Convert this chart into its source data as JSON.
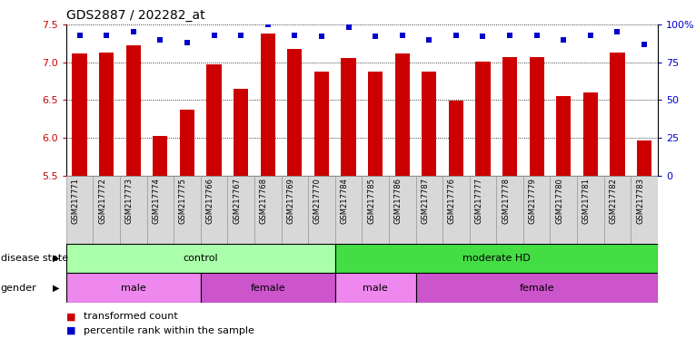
{
  "title": "GDS2887 / 202282_at",
  "samples": [
    "GSM217771",
    "GSM217772",
    "GSM217773",
    "GSM217774",
    "GSM217775",
    "GSM217766",
    "GSM217767",
    "GSM217768",
    "GSM217769",
    "GSM217770",
    "GSM217784",
    "GSM217785",
    "GSM217786",
    "GSM217787",
    "GSM217776",
    "GSM217777",
    "GSM217778",
    "GSM217779",
    "GSM217780",
    "GSM217781",
    "GSM217782",
    "GSM217783"
  ],
  "bar_values": [
    7.12,
    7.13,
    7.22,
    6.02,
    6.37,
    6.97,
    6.65,
    7.38,
    7.17,
    6.88,
    7.05,
    6.88,
    7.12,
    6.88,
    6.49,
    7.01,
    7.07,
    7.07,
    6.55,
    6.6,
    7.13,
    5.97
  ],
  "percentile_values": [
    93,
    93,
    95,
    90,
    88,
    93,
    93,
    100,
    93,
    92,
    98,
    92,
    93,
    90,
    93,
    92,
    93,
    93,
    90,
    93,
    95,
    87
  ],
  "bar_color": "#cc0000",
  "percentile_color": "#0000cc",
  "ylim_left": [
    5.5,
    7.5
  ],
  "ylim_right": [
    0,
    100
  ],
  "yticks_left": [
    5.5,
    6.0,
    6.5,
    7.0,
    7.5
  ],
  "yticks_right": [
    0,
    25,
    50,
    75,
    100
  ],
  "ytick_labels_right": [
    "0",
    "25",
    "50",
    "75",
    "100%"
  ],
  "disease_state_groups": [
    {
      "label": "control",
      "start": 0,
      "end": 10,
      "color": "#aaffaa"
    },
    {
      "label": "moderate HD",
      "start": 10,
      "end": 22,
      "color": "#44dd44"
    }
  ],
  "gender_groups": [
    {
      "label": "male",
      "start": 0,
      "end": 5,
      "color": "#ee88ee"
    },
    {
      "label": "female",
      "start": 5,
      "end": 10,
      "color": "#cc55cc"
    },
    {
      "label": "male",
      "start": 10,
      "end": 13,
      "color": "#ee88ee"
    },
    {
      "label": "female",
      "start": 13,
      "end": 22,
      "color": "#cc55cc"
    }
  ],
  "disease_state_label": "disease state",
  "gender_label": "gender",
  "legend_items": [
    {
      "label": "transformed count",
      "color": "#cc0000"
    },
    {
      "label": "percentile rank within the sample",
      "color": "#0000cc"
    }
  ],
  "bar_width": 0.55,
  "bar_bottom": 5.5,
  "xtick_bg_color": "#d8d8d8",
  "xtick_border_color": "#999999"
}
